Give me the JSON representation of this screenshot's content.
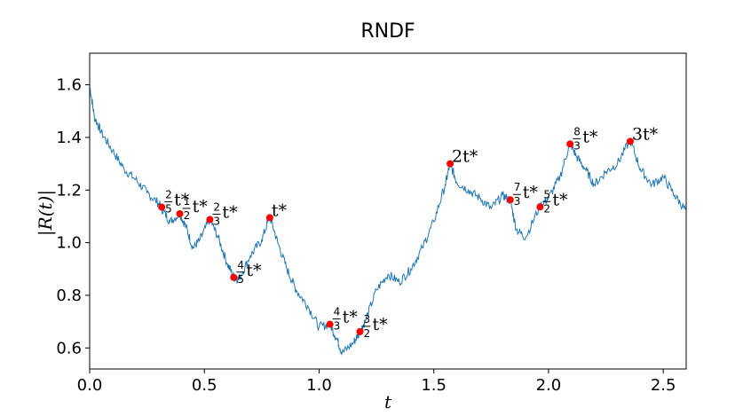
{
  "chart_data": {
    "type": "line",
    "title": "RNDF",
    "xlabel": "t",
    "ylabel": "|R(t)|",
    "xlim": [
      0,
      2.6
    ],
    "ylim": [
      0.52,
      1.72
    ],
    "xticks": [
      "0.0",
      "0.5",
      "1.0",
      "1.5",
      "2.0",
      "2.5"
    ],
    "xtick_values": [
      0,
      0.5,
      1.0,
      1.5,
      2.0,
      2.5
    ],
    "yticks": [
      "0.6",
      "0.8",
      "1.0",
      "1.2",
      "1.4",
      "1.6"
    ],
    "ytick_values": [
      0.6,
      0.8,
      1.0,
      1.2,
      1.4,
      1.6
    ],
    "grid": false,
    "line_color": "#1f77b4",
    "marker_color": "#ff0000",
    "series": [
      {
        "x": [
          0.0,
          0.02,
          0.05,
          0.1,
          0.15,
          0.2,
          0.25,
          0.3,
          0.314,
          0.35,
          0.393,
          0.42,
          0.45,
          0.48,
          0.524,
          0.56,
          0.6,
          0.628,
          0.65,
          0.7,
          0.75,
          0.785,
          0.82,
          0.86,
          0.9,
          0.95,
          1.0,
          1.047,
          1.08,
          1.1,
          1.15,
          1.178,
          1.2,
          1.25,
          1.3,
          1.35,
          1.4,
          1.45,
          1.5,
          1.55,
          1.571,
          1.6,
          1.65,
          1.7,
          1.75,
          1.8,
          1.833,
          1.86,
          1.9,
          1.963,
          2.0,
          2.05,
          2.094,
          2.12,
          2.16,
          2.2,
          2.25,
          2.3,
          2.356,
          2.4,
          2.45,
          2.5,
          2.55,
          2.6
        ],
        "y": [
          1.6,
          1.48,
          1.42,
          1.35,
          1.28,
          1.24,
          1.19,
          1.15,
          1.13,
          1.08,
          1.11,
          1.06,
          0.98,
          1.01,
          1.09,
          1.02,
          0.92,
          0.87,
          0.86,
          0.95,
          1.01,
          1.1,
          1.0,
          0.9,
          0.82,
          0.76,
          0.68,
          0.69,
          0.63,
          0.58,
          0.62,
          0.66,
          0.7,
          0.82,
          0.88,
          0.85,
          0.9,
          0.98,
          1.08,
          1.22,
          1.3,
          1.23,
          1.2,
          1.17,
          1.13,
          1.18,
          1.16,
          1.05,
          1.02,
          1.14,
          1.17,
          1.25,
          1.38,
          1.33,
          1.28,
          1.22,
          1.27,
          1.3,
          1.39,
          1.28,
          1.22,
          1.25,
          1.18,
          1.12
        ]
      }
    ],
    "markers": [
      {
        "x": 0.314,
        "y": 1.135,
        "num": "2",
        "den": "5",
        "suffix": "t*"
      },
      {
        "x": 0.393,
        "y": 1.11,
        "num": "1",
        "den": "2",
        "suffix": "t*"
      },
      {
        "x": 0.524,
        "y": 1.088,
        "num": "2",
        "den": "3",
        "suffix": "t*"
      },
      {
        "x": 0.628,
        "y": 0.868,
        "num": "4",
        "den": "5",
        "suffix": "t*"
      },
      {
        "x": 0.785,
        "y": 1.095,
        "num": "",
        "den": "",
        "suffix": "t*"
      },
      {
        "x": 1.047,
        "y": 0.69,
        "num": "4",
        "den": "3",
        "suffix": "t*"
      },
      {
        "x": 1.178,
        "y": 0.662,
        "num": "3",
        "den": "2",
        "suffix": "t*"
      },
      {
        "x": 1.571,
        "y": 1.3,
        "num": "",
        "den": "",
        "suffix": "2t*"
      },
      {
        "x": 1.833,
        "y": 1.163,
        "num": "7",
        "den": "3",
        "suffix": "t*"
      },
      {
        "x": 1.963,
        "y": 1.136,
        "num": "5",
        "den": "2",
        "suffix": "t*"
      },
      {
        "x": 2.094,
        "y": 1.375,
        "num": "8",
        "den": "3",
        "suffix": "t*"
      },
      {
        "x": 2.356,
        "y": 1.385,
        "num": "",
        "den": "",
        "suffix": "3t*"
      }
    ]
  }
}
